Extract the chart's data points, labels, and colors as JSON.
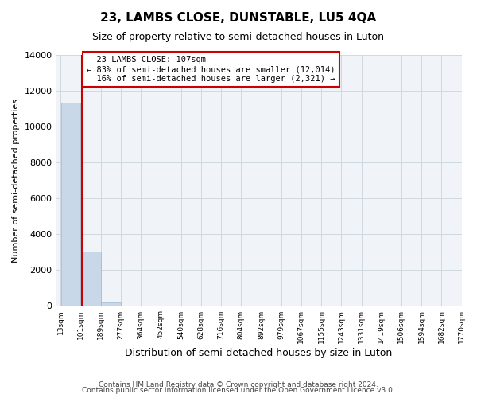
{
  "title": "23, LAMBS CLOSE, DUNSTABLE, LU5 4QA",
  "subtitle": "Size of property relative to semi-detached houses in Luton",
  "xlabel": "Distribution of semi-detached houses by size in Luton",
  "ylabel": "Number of semi-detached properties",
  "property_size": 107,
  "property_label": "23 LAMBS CLOSE: 107sqm",
  "pct_smaller": 83,
  "n_smaller": 12014,
  "pct_larger": 16,
  "n_larger": 2321,
  "bar_color": "#c8d8e8",
  "bar_edge_color": "#a0b8cc",
  "vline_color": "#cc0000",
  "annotation_box_color": "#cc0000",
  "ylim": [
    0,
    14000
  ],
  "yticks": [
    0,
    2000,
    4000,
    6000,
    8000,
    10000,
    12000,
    14000
  ],
  "bin_edges": [
    13,
    101,
    189,
    277,
    364,
    452,
    540,
    628,
    716,
    804,
    892,
    979,
    1067,
    1155,
    1243,
    1331,
    1419,
    1506,
    1594,
    1682,
    1770
  ],
  "bin_labels": [
    "13sqm",
    "101sqm",
    "189sqm",
    "277sqm",
    "364sqm",
    "452sqm",
    "540sqm",
    "628sqm",
    "716sqm",
    "804sqm",
    "892sqm",
    "979sqm",
    "1067sqm",
    "1155sqm",
    "1243sqm",
    "1331sqm",
    "1419sqm",
    "1506sqm",
    "1594sqm",
    "1682sqm",
    "1770sqm"
  ],
  "bin_counts": [
    11350,
    3050,
    200,
    0,
    0,
    0,
    0,
    0,
    0,
    0,
    0,
    0,
    0,
    0,
    0,
    0,
    0,
    0,
    0,
    0
  ],
  "footer_line1": "Contains HM Land Registry data © Crown copyright and database right 2024.",
  "footer_line2": "Contains public sector information licensed under the Open Government Licence v3.0.",
  "background_color": "#f0f4f8",
  "grid_color": "#d0d8e0"
}
